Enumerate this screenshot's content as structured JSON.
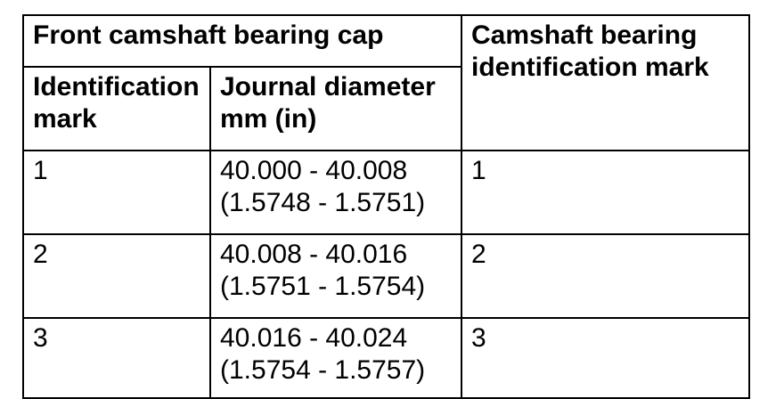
{
  "table": {
    "header": {
      "front_cap": "Front camshaft bearing cap",
      "bearing_id_mark": "Camshaft bearing identification mark",
      "identification_mark": "Identification mark",
      "journal_diameter": "Journal diameter mm (in)"
    },
    "rows": [
      {
        "id_mark": "1",
        "journal_mm": "40.000 - 40.008",
        "journal_in": "(1.5748 - 1.5751)",
        "bearing_mark": "1"
      },
      {
        "id_mark": "2",
        "journal_mm": "40.008 - 40.016",
        "journal_in": "(1.5751 - 1.5754)",
        "bearing_mark": "2"
      },
      {
        "id_mark": "3",
        "journal_mm": "40.016 - 40.024",
        "journal_in": "(1.5754 - 1.5757)",
        "bearing_mark": "3"
      }
    ]
  }
}
